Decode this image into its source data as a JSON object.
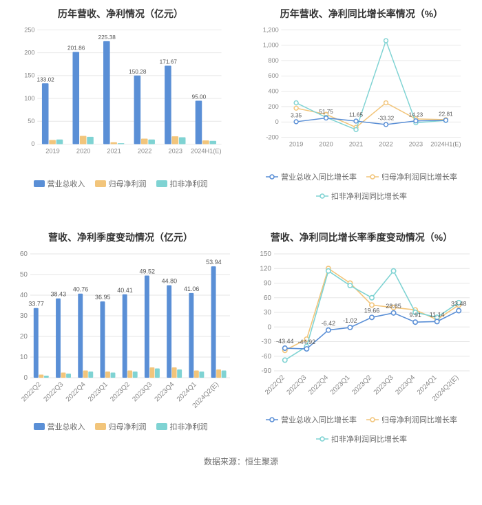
{
  "source_line": "数据来源：恒生聚源",
  "colors": {
    "blue": "#5a8fd6",
    "orange": "#f2c57b",
    "teal": "#7fd3d3",
    "grid": "#e6e6e6",
    "text": "#888"
  },
  "chart_a": {
    "title": "历年营收、净利情况（亿元）",
    "type": "grouped-bar",
    "categories": [
      "2019",
      "2020",
      "2021",
      "2022",
      "2023",
      "2024H1(E)"
    ],
    "series": [
      {
        "name": "营业总收入",
        "color": "#5a8fd6",
        "values": [
          133.02,
          201.86,
          225.38,
          150.28,
          171.67,
          95.0
        ],
        "labeled": true
      },
      {
        "name": "归母净利润",
        "color": "#f2c57b",
        "values": [
          9,
          18,
          4,
          12,
          17,
          8
        ],
        "labeled": false
      },
      {
        "name": "扣非净利润",
        "color": "#7fd3d3",
        "values": [
          10,
          16,
          2,
          10,
          15,
          7
        ],
        "labeled": false
      }
    ],
    "ylim": [
      0,
      250
    ],
    "ytick_step": 50
  },
  "chart_b": {
    "title": "历年营收、净利同比增长率情况（%）",
    "type": "line",
    "categories": [
      "2019",
      "2020",
      "2021",
      "2022",
      "2023",
      "2024H1(E)"
    ],
    "series": [
      {
        "name": "营业总收入同比增长率",
        "color": "#5a8fd6",
        "values": [
          3.35,
          51.75,
          11.65,
          -33.32,
          14.23,
          22.81
        ],
        "labels": [
          "3.35",
          "51.75",
          "11.65",
          "-33.32",
          "14.23",
          "22.81"
        ]
      },
      {
        "name": "归母净利润同比增长率",
        "color": "#f2c57b",
        "values": [
          180,
          100,
          -70,
          250,
          40,
          30
        ],
        "labels": null
      },
      {
        "name": "扣非净利润同比增长率",
        "color": "#7fd3d3",
        "values": [
          250,
          60,
          -100,
          1060,
          -10,
          20
        ],
        "labels": null
      }
    ],
    "ylim": [
      -200,
      1200
    ],
    "ytick_step": 200
  },
  "chart_c": {
    "title": "营收、净利季度变动情况（亿元）",
    "type": "grouped-bar",
    "categories": [
      "2022Q2",
      "2022Q3",
      "2022Q4",
      "2023Q1",
      "2023Q2",
      "2023Q3",
      "2023Q4",
      "2024Q1",
      "2024Q2(E)"
    ],
    "series": [
      {
        "name": "营业总收入",
        "color": "#5a8fd6",
        "values": [
          33.77,
          38.43,
          40.76,
          36.95,
          40.41,
          49.52,
          44.8,
          41.06,
          53.94
        ],
        "labeled": true
      },
      {
        "name": "归母净利润",
        "color": "#f2c57b",
        "values": [
          1.5,
          2.5,
          3.5,
          3,
          3.5,
          5,
          5,
          3.5,
          4
        ],
        "labeled": false
      },
      {
        "name": "扣非净利润",
        "color": "#7fd3d3",
        "values": [
          1,
          2,
          3,
          2.5,
          3,
          4.5,
          4,
          3,
          3.5
        ],
        "labeled": false
      }
    ],
    "ylim": [
      0,
      60
    ],
    "ytick_step": 10
  },
  "chart_d": {
    "title": "营收、净利同比增长率季度变动情况（%）",
    "type": "line",
    "categories": [
      "2022Q2",
      "2022Q3",
      "2022Q4",
      "2023Q1",
      "2023Q2",
      "2023Q3",
      "2023Q4",
      "2024Q1",
      "2024Q2(E)"
    ],
    "series": [
      {
        "name": "营业总收入同比增长率",
        "color": "#5a8fd6",
        "values": [
          -43.44,
          -44.92,
          -6.42,
          -1.02,
          19.66,
          28.85,
          9.91,
          11.14,
          33.48
        ],
        "labels": [
          "-43.44",
          "-44.92",
          "-6.42",
          "-1.02",
          "19.66",
          "28.85",
          "9.91",
          "11.14",
          "33.48"
        ]
      },
      {
        "name": "归母净利润同比增长率",
        "color": "#f2c57b",
        "values": [
          -48,
          -25,
          120,
          90,
          45,
          40,
          35,
          15,
          45
        ],
        "labels": null
      },
      {
        "name": "扣非净利润同比增长率",
        "color": "#7fd3d3",
        "values": [
          -68,
          -40,
          115,
          85,
          60,
          115,
          30,
          20,
          50
        ],
        "labels": null
      }
    ],
    "ylim": [
      -90,
      150
    ],
    "ytick_step": 30
  }
}
